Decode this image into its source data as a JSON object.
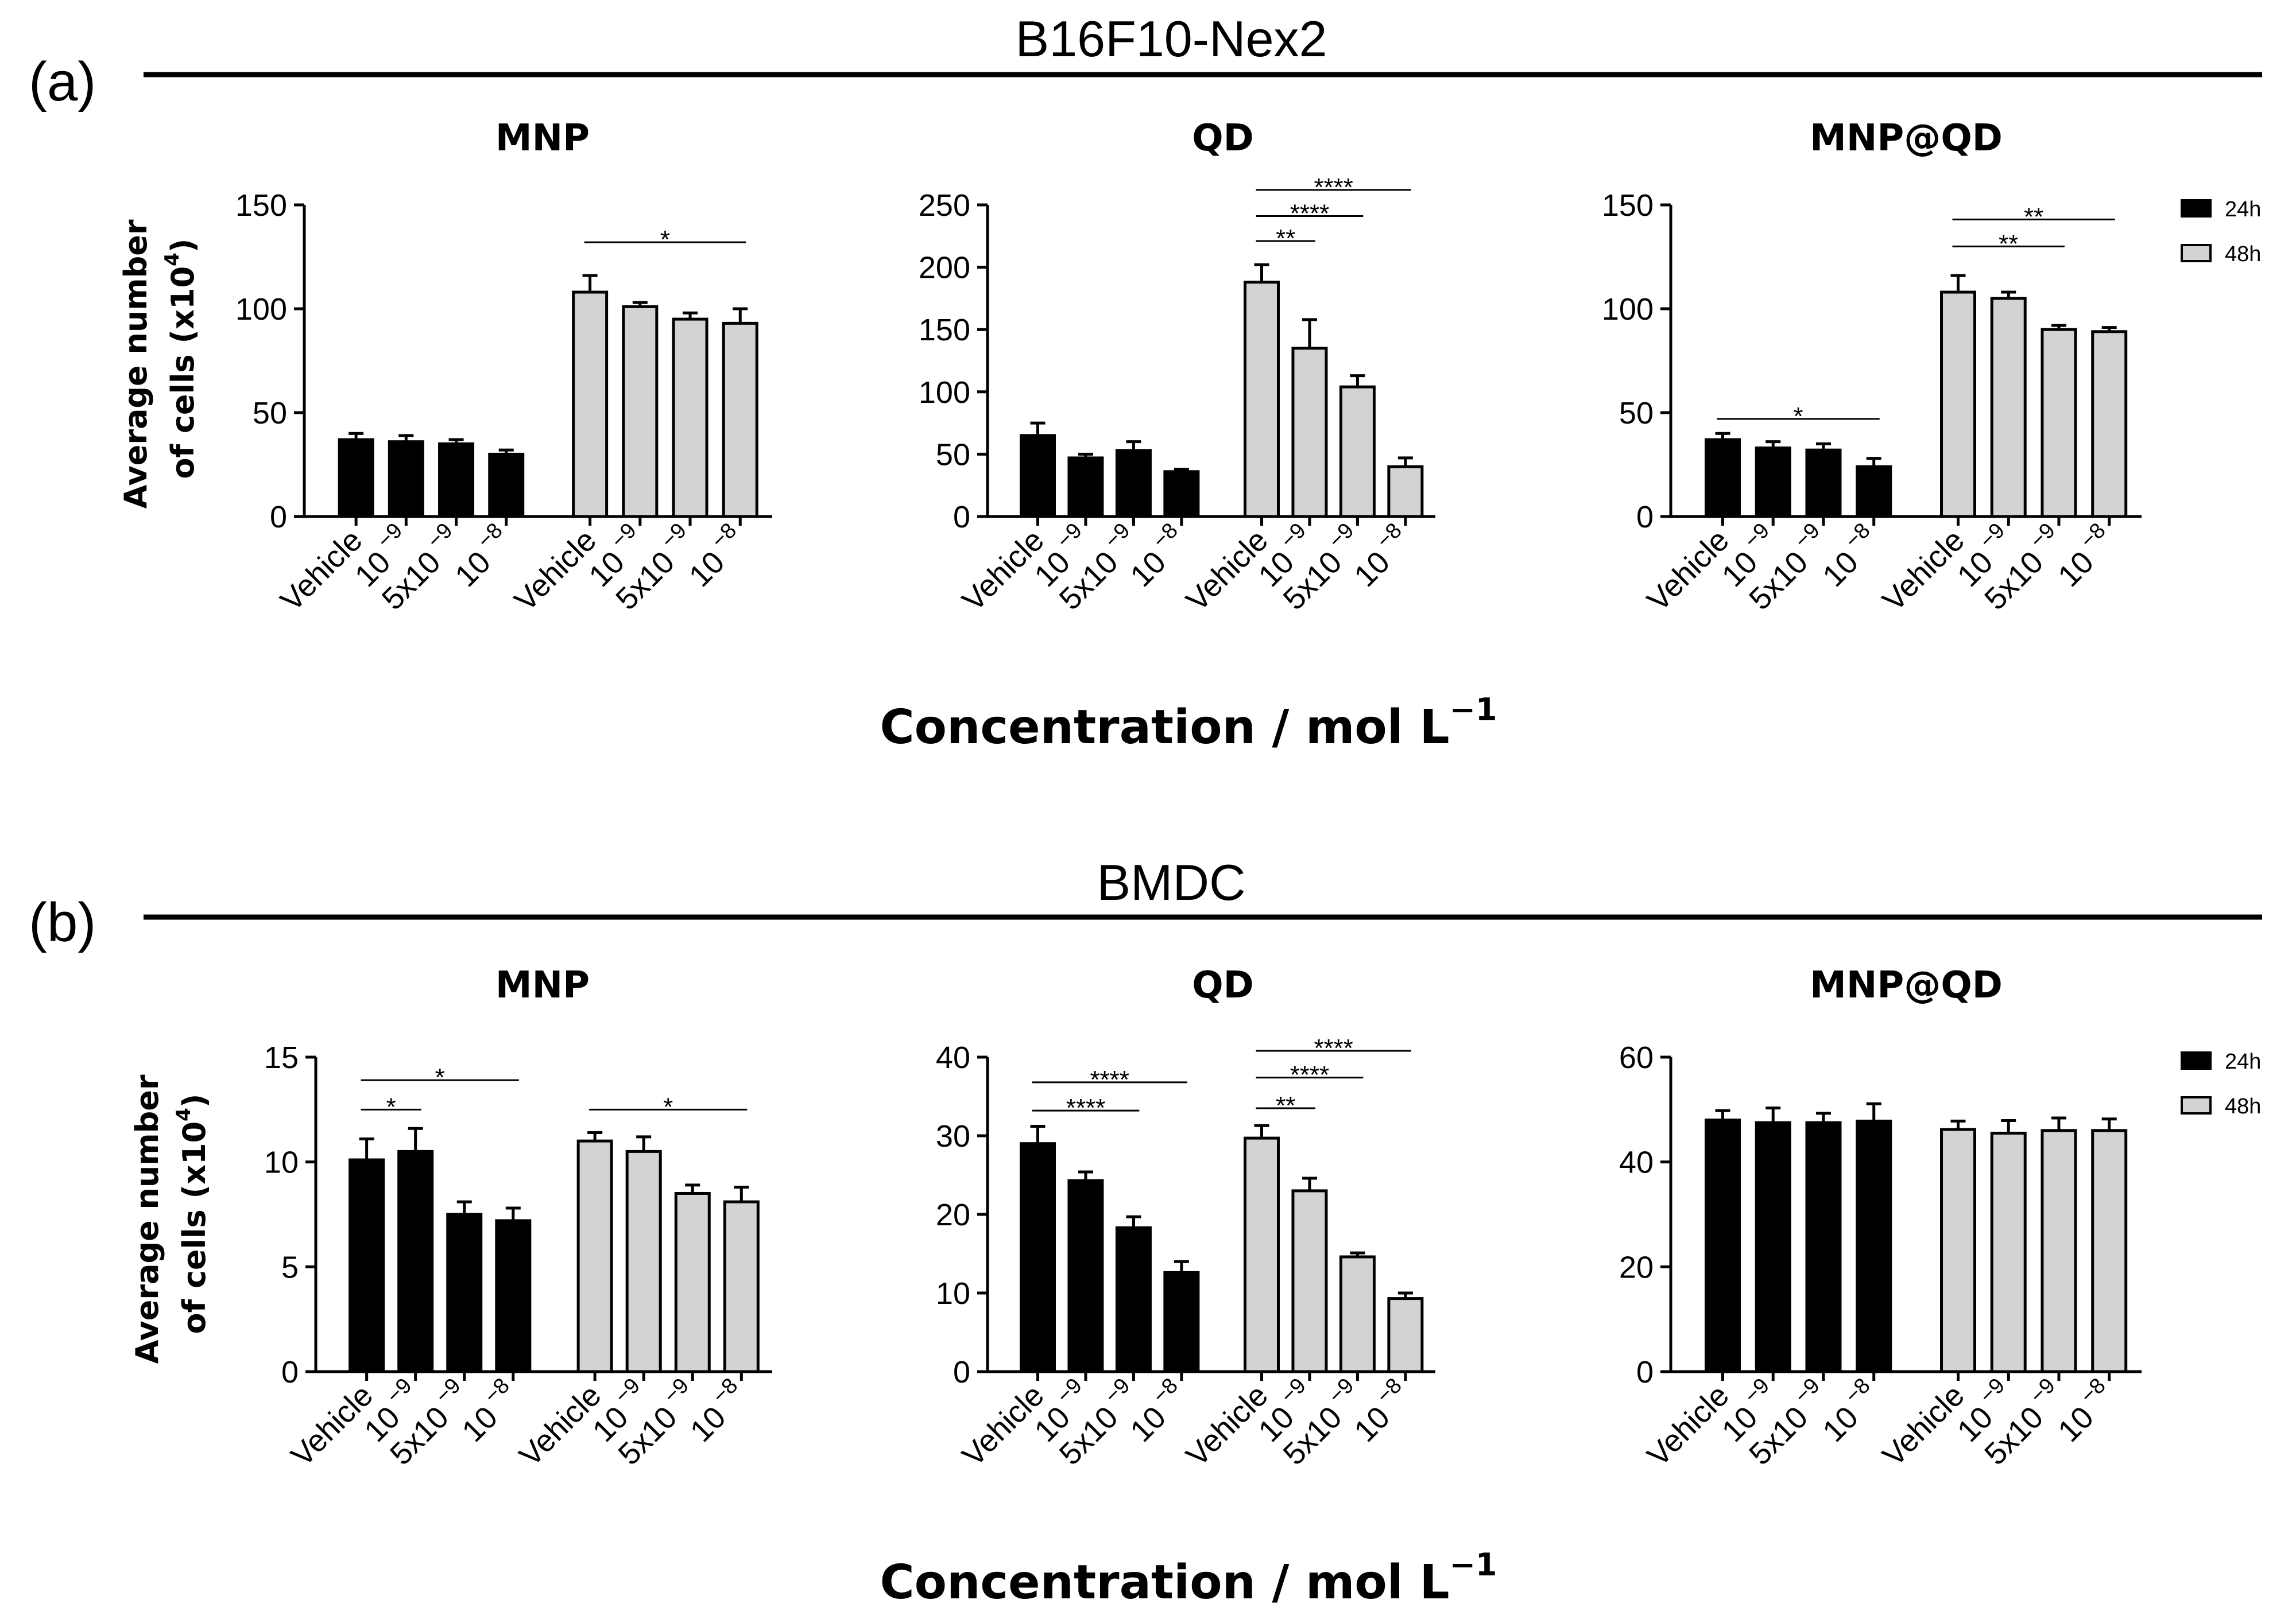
{
  "figure": {
    "sections": [
      {
        "letter": "(a)",
        "title": "B16F10-Nex2",
        "xlabel": "Concentration / mol L",
        "xlabel_sup": "−1"
      },
      {
        "letter": "(b)",
        "title": "BMDC",
        "xlabel": "Concentration / mol L",
        "xlabel_sup": "−1"
      }
    ],
    "ylabel_line1": "Average number",
    "ylabel_line2_pre": "of cells (x10",
    "ylabel_line2_sup": "4",
    "ylabel_line2_post": ")"
  },
  "colors": {
    "series_24h": "#000000",
    "series_48h": "#d3d3d3",
    "axis": "#000000"
  },
  "chart_data": [
    {
      "type": "bar",
      "section": "a",
      "title": "MNP",
      "groups": [
        "24h",
        "48h"
      ],
      "categories": [
        "Vehicle",
        "10^-9",
        "5x10^-9",
        "10^-8"
      ],
      "series": [
        {
          "name": "24h",
          "values": [
            37,
            36,
            35,
            30
          ],
          "errors": [
            3,
            3,
            2,
            2
          ]
        },
        {
          "name": "48h",
          "values": [
            108,
            101,
            95,
            93
          ],
          "errors": [
            8,
            2,
            3,
            7
          ]
        }
      ],
      "yticks": [
        0,
        50,
        100,
        150
      ],
      "ylim": [
        0,
        150
      ],
      "legend": false,
      "significance": [
        {
          "group": 1,
          "from": 0,
          "to": 3,
          "label": "*",
          "y": 132
        }
      ]
    },
    {
      "type": "bar",
      "section": "a",
      "title": "QD",
      "groups": [
        "24h",
        "48h"
      ],
      "categories": [
        "Vehicle",
        "10^-9",
        "5x10^-9",
        "10^-8"
      ],
      "series": [
        {
          "name": "24h",
          "values": [
            65,
            47,
            53,
            36
          ],
          "errors": [
            10,
            3,
            7,
            2
          ]
        },
        {
          "name": "48h",
          "values": [
            188,
            135,
            104,
            40
          ],
          "errors": [
            14,
            23,
            9,
            7
          ]
        }
      ],
      "yticks": [
        0,
        50,
        100,
        150,
        200,
        250
      ],
      "ylim": [
        0,
        250
      ],
      "legend": false,
      "significance": [
        {
          "group": 1,
          "from": 0,
          "to": 3,
          "label": "****",
          "y": 262
        },
        {
          "group": 1,
          "from": 0,
          "to": 2,
          "label": "****",
          "y": 241
        },
        {
          "group": 1,
          "from": 0,
          "to": 1,
          "label": "**",
          "y": 221
        }
      ]
    },
    {
      "type": "bar",
      "section": "a",
      "title": "MNP@QD",
      "groups": [
        "24h",
        "48h"
      ],
      "categories": [
        "Vehicle",
        "10^-9",
        "5x10^-9",
        "10^-8"
      ],
      "series": [
        {
          "name": "24h",
          "values": [
            37,
            33,
            32,
            24
          ],
          "errors": [
            3,
            3,
            3,
            4
          ]
        },
        {
          "name": "48h",
          "values": [
            108,
            105,
            90,
            89
          ],
          "errors": [
            8,
            3,
            2,
            2
          ]
        }
      ],
      "yticks": [
        0,
        50,
        100,
        150
      ],
      "ylim": [
        0,
        150
      ],
      "legend": true,
      "significance": [
        {
          "group": 0,
          "from": 0,
          "to": 3,
          "label": "*",
          "y": 47
        },
        {
          "group": 1,
          "from": 0,
          "to": 3,
          "label": "**",
          "y": 143
        },
        {
          "group": 1,
          "from": 0,
          "to": 2,
          "label": "**",
          "y": 130
        }
      ]
    },
    {
      "type": "bar",
      "section": "b",
      "title": "MNP",
      "groups": [
        "24h",
        "48h"
      ],
      "categories": [
        "Vehicle",
        "10^-9",
        "5x10^-9",
        "10^-8"
      ],
      "series": [
        {
          "name": "24h",
          "values": [
            10.1,
            10.5,
            7.5,
            7.2
          ],
          "errors": [
            1.0,
            1.1,
            0.6,
            0.6
          ]
        },
        {
          "name": "48h",
          "values": [
            11.0,
            10.5,
            8.5,
            8.1
          ],
          "errors": [
            0.4,
            0.7,
            0.4,
            0.7
          ]
        }
      ],
      "yticks": [
        0,
        5,
        10,
        15
      ],
      "ylim": [
        0,
        15
      ],
      "legend": false,
      "significance": [
        {
          "group": 0,
          "from": 0,
          "to": 3,
          "label": "*",
          "y": 13.9
        },
        {
          "group": 0,
          "from": 0,
          "to": 1,
          "label": "*",
          "y": 12.5
        },
        {
          "group": 1,
          "from": 0,
          "to": 3,
          "label": "*",
          "y": 12.5
        }
      ]
    },
    {
      "type": "bar",
      "section": "b",
      "title": "QD",
      "groups": [
        "24h",
        "48h"
      ],
      "categories": [
        "Vehicle",
        "10^-9",
        "5x10^-9",
        "10^-8"
      ],
      "series": [
        {
          "name": "24h",
          "values": [
            29,
            24.3,
            18.3,
            12.6
          ],
          "errors": [
            2.2,
            1.1,
            1.4,
            1.4
          ]
        },
        {
          "name": "48h",
          "values": [
            29.7,
            23,
            14.6,
            9.3
          ],
          "errors": [
            1.6,
            1.6,
            0.5,
            0.7
          ]
        }
      ],
      "yticks": [
        0,
        10,
        20,
        30,
        40
      ],
      "ylim": [
        0,
        40
      ],
      "legend": false,
      "significance": [
        {
          "group": 0,
          "from": 0,
          "to": 3,
          "label": "****",
          "y": 36.8
        },
        {
          "group": 0,
          "from": 0,
          "to": 2,
          "label": "****",
          "y": 33.2
        },
        {
          "group": 1,
          "from": 0,
          "to": 3,
          "label": "****",
          "y": 40.8
        },
        {
          "group": 1,
          "from": 0,
          "to": 2,
          "label": "****",
          "y": 37.4
        },
        {
          "group": 1,
          "from": 0,
          "to": 1,
          "label": "**",
          "y": 33.5
        }
      ]
    },
    {
      "type": "bar",
      "section": "b",
      "title": "MNP@QD",
      "groups": [
        "24h",
        "48h"
      ],
      "categories": [
        "Vehicle",
        "10^-9",
        "5x10^-9",
        "10^-8"
      ],
      "series": [
        {
          "name": "24h",
          "values": [
            48,
            47.5,
            47.5,
            47.8
          ],
          "errors": [
            1.8,
            2.8,
            1.8,
            3.3
          ]
        },
        {
          "name": "48h",
          "values": [
            46.2,
            45.5,
            46,
            46
          ],
          "errors": [
            1.6,
            2.4,
            2.4,
            2.2
          ]
        }
      ],
      "yticks": [
        0,
        20,
        40,
        60
      ],
      "ylim": [
        0,
        60
      ],
      "legend": true,
      "significance": []
    }
  ]
}
